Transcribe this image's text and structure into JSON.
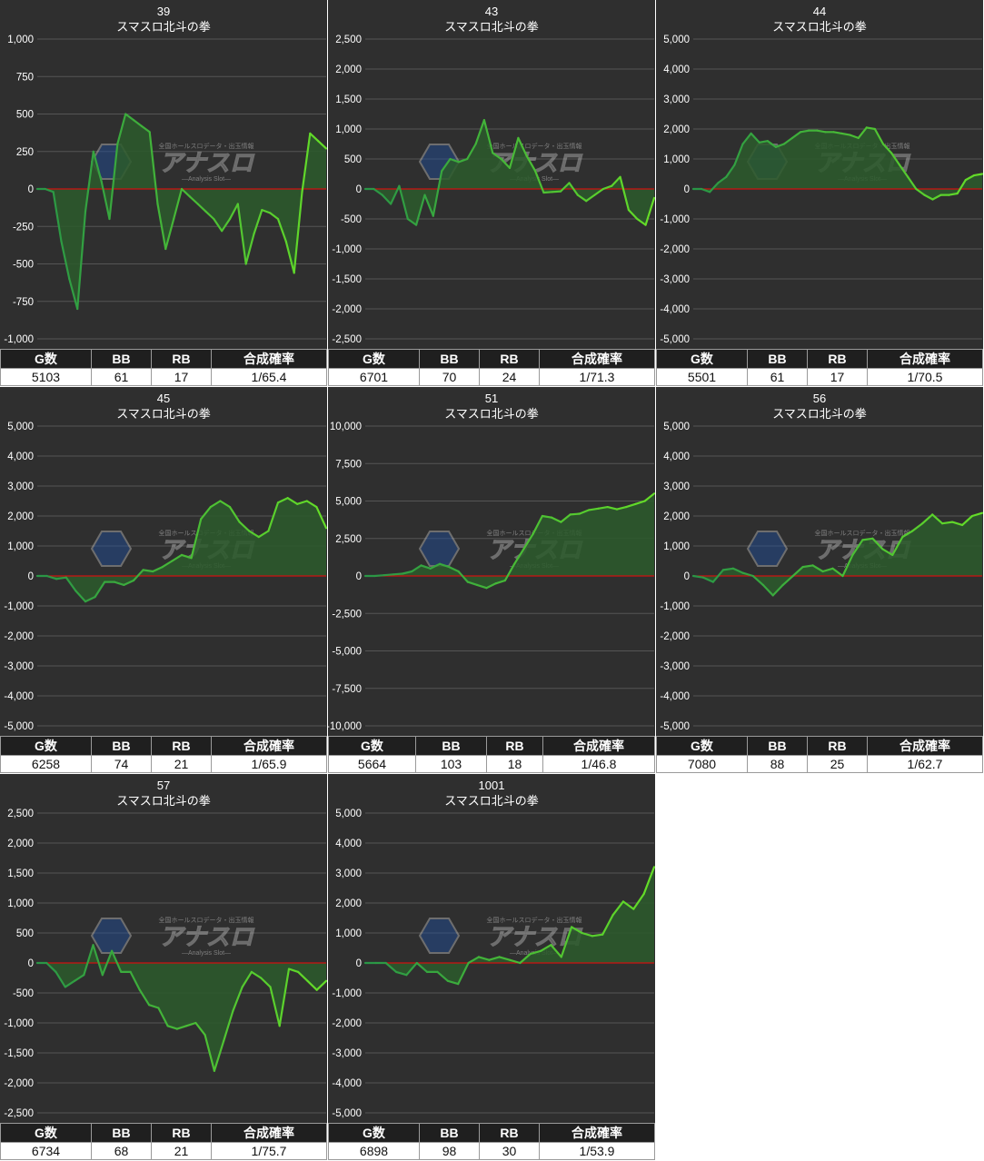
{
  "colors": {
    "background": "#2f2f2f",
    "grid": "#555555",
    "line": "#55cc33",
    "fill": "#2c5a2c",
    "zero_line": "#d01010",
    "text": "#ffffff",
    "header_bg": "#1f1f1f"
  },
  "headers": {
    "games": "G数",
    "bb": "BB",
    "rb": "RB",
    "rate": "合成確率"
  },
  "watermark": {
    "top": "全国ホールスロデータ・出玉情報",
    "main": "アナスロ",
    "sub": "—Analysis Slot—"
  },
  "chart_data": [
    {
      "type": "area",
      "title": "39",
      "subtitle": "スマスロ北斗の拳",
      "ylim": [
        -1000,
        1000
      ],
      "yticks": [
        -1000,
        -750,
        -500,
        -250,
        0,
        250,
        500,
        750,
        1000
      ],
      "tick_labels": [
        "-1,000",
        "-750",
        "-500",
        "-250",
        "0",
        "250",
        "500",
        "750",
        "1,000"
      ],
      "values": [
        0,
        0,
        -20,
        -350,
        -600,
        -800,
        -150,
        250,
        50,
        -200,
        300,
        500,
        460,
        420,
        380,
        -100,
        -400,
        -200,
        0,
        -50,
        -100,
        -150,
        -200,
        -280,
        -200,
        -100,
        -500,
        -300,
        -140,
        -160,
        -200,
        -350,
        -560,
        -20,
        370,
        320,
        270
      ],
      "stats": {
        "games": "5103",
        "bb": "61",
        "rb": "17",
        "rate": "1/65.4"
      }
    },
    {
      "type": "area",
      "title": "43",
      "subtitle": "スマスロ北斗の拳",
      "ylim": [
        -2500,
        2500
      ],
      "yticks": [
        -2500,
        -2000,
        -1500,
        -1000,
        -500,
        0,
        500,
        1000,
        1500,
        2000,
        2500
      ],
      "tick_labels": [
        "-2,500",
        "-2,000",
        "-1,500",
        "-1,000",
        "-500",
        "0",
        "500",
        "1,000",
        "1,500",
        "2,000",
        "2,500"
      ],
      "values": [
        0,
        0,
        -100,
        -250,
        50,
        -500,
        -600,
        -100,
        -450,
        300,
        500,
        450,
        500,
        750,
        1150,
        600,
        500,
        350,
        850,
        550,
        300,
        -60,
        -50,
        -40,
        100,
        -100,
        -200,
        -100,
        0,
        50,
        200,
        -350,
        -500,
        -600,
        -150
      ],
      "stats": {
        "games": "6701",
        "bb": "70",
        "rb": "24",
        "rate": "1/71.3"
      }
    },
    {
      "type": "area",
      "title": "44",
      "subtitle": "スマスロ北斗の拳",
      "ylim": [
        -5000,
        5000
      ],
      "yticks": [
        -5000,
        -4000,
        -3000,
        -2000,
        -1000,
        0,
        1000,
        2000,
        3000,
        4000,
        5000
      ],
      "tick_labels": [
        "-5,000",
        "-4,000",
        "-3,000",
        "-2,000",
        "-1,000",
        "0",
        "1,000",
        "2,000",
        "3,000",
        "4,000",
        "5,000"
      ],
      "values": [
        0,
        0,
        -100,
        200,
        400,
        800,
        1500,
        1850,
        1550,
        1600,
        1400,
        1500,
        1700,
        1900,
        1950,
        1950,
        1900,
        1900,
        1850,
        1800,
        1700,
        2050,
        2000,
        1500,
        1200,
        800,
        400,
        0,
        -200,
        -350,
        -200,
        -200,
        -150,
        300,
        450,
        500
      ],
      "stats": {
        "games": "5501",
        "bb": "61",
        "rb": "17",
        "rate": "1/70.5"
      }
    },
    {
      "type": "area",
      "title": "45",
      "subtitle": "スマスロ北斗の拳",
      "ylim": [
        -5000,
        5000
      ],
      "yticks": [
        -5000,
        -4000,
        -3000,
        -2000,
        -1000,
        0,
        1000,
        2000,
        3000,
        4000,
        5000
      ],
      "tick_labels": [
        "-5,000",
        "-4,000",
        "-3,000",
        "-2,000",
        "-1,000",
        "0",
        "1,000",
        "2,000",
        "3,000",
        "4,000",
        "5,000"
      ],
      "values": [
        0,
        0,
        -100,
        -50,
        -500,
        -850,
        -700,
        -200,
        -200,
        -300,
        -150,
        200,
        150,
        300,
        500,
        700,
        600,
        1900,
        2300,
        2500,
        2300,
        1800,
        1500,
        1300,
        1500,
        2450,
        2600,
        2400,
        2500,
        2300,
        1600
      ],
      "stats": {
        "games": "6258",
        "bb": "74",
        "rb": "21",
        "rate": "1/65.9"
      }
    },
    {
      "type": "area",
      "title": "51",
      "subtitle": "スマスロ北斗の拳",
      "ylim": [
        -10000,
        10000
      ],
      "yticks": [
        -10000,
        -7500,
        -5000,
        -2500,
        0,
        2500,
        5000,
        7500,
        10000
      ],
      "tick_labels": [
        "-10,000",
        "-7,500",
        "-5,000",
        "-2,500",
        "0",
        "2,500",
        "5,000",
        "7,500",
        "10,000"
      ],
      "values": [
        0,
        0,
        50,
        100,
        150,
        300,
        700,
        500,
        800,
        600,
        300,
        -400,
        -600,
        -800,
        -500,
        -300,
        800,
        1800,
        2800,
        4000,
        3900,
        3600,
        4100,
        4150,
        4400,
        4500,
        4600,
        4450,
        4600,
        4800,
        5000,
        5500
      ],
      "stats": {
        "games": "5664",
        "bb": "103",
        "rb": "18",
        "rate": "1/46.8"
      }
    },
    {
      "type": "area",
      "title": "56",
      "subtitle": "スマスロ北斗の拳",
      "ylim": [
        -5000,
        5000
      ],
      "yticks": [
        -5000,
        -4000,
        -3000,
        -2000,
        -1000,
        0,
        1000,
        2000,
        3000,
        4000,
        5000
      ],
      "tick_labels": [
        "-5,000",
        "-4,000",
        "-3,000",
        "-2,000",
        "-1,000",
        "0",
        "1,000",
        "2,000",
        "3,000",
        "4,000",
        "5,000"
      ],
      "values": [
        0,
        -50,
        -200,
        200,
        250,
        100,
        0,
        -300,
        -650,
        -300,
        0,
        300,
        350,
        150,
        250,
        0,
        700,
        1200,
        1250,
        900,
        700,
        1300,
        1500,
        1750,
        2050,
        1750,
        1800,
        1700,
        2000,
        2100
      ],
      "stats": {
        "games": "7080",
        "bb": "88",
        "rb": "25",
        "rate": "1/62.7"
      }
    },
    {
      "type": "area",
      "title": "57",
      "subtitle": "スマスロ北斗の拳",
      "ylim": [
        -2500,
        2500
      ],
      "yticks": [
        -2500,
        -2000,
        -1500,
        -1000,
        -500,
        0,
        500,
        1000,
        1500,
        2000,
        2500
      ],
      "tick_labels": [
        "-2,500",
        "-2,000",
        "-1,500",
        "-1,000",
        "-500",
        "0",
        "500",
        "1,000",
        "1,500",
        "2,000",
        "2,500"
      ],
      "values": [
        0,
        0,
        -150,
        -400,
        -300,
        -200,
        300,
        -200,
        200,
        -150,
        -150,
        -450,
        -700,
        -750,
        -1050,
        -1100,
        -1050,
        -1000,
        -1200,
        -1800,
        -1300,
        -800,
        -400,
        -150,
        -250,
        -400,
        -1050,
        -100,
        -150,
        -300,
        -450,
        -300
      ],
      "stats": {
        "games": "6734",
        "bb": "68",
        "rb": "21",
        "rate": "1/75.7"
      }
    },
    {
      "type": "area",
      "title": "1001",
      "subtitle": "スマスロ北斗の拳",
      "ylim": [
        -5000,
        5000
      ],
      "yticks": [
        -5000,
        -4000,
        -3000,
        -2000,
        -1000,
        0,
        1000,
        2000,
        3000,
        4000,
        5000
      ],
      "tick_labels": [
        "-5,000",
        "-4,000",
        "-3,000",
        "-2,000",
        "-1,000",
        "0",
        "1,000",
        "2,000",
        "3,000",
        "4,000",
        "5,000"
      ],
      "values": [
        0,
        0,
        0,
        -300,
        -400,
        0,
        -300,
        -300,
        -600,
        -700,
        0,
        200,
        100,
        200,
        100,
        0,
        300,
        400,
        600,
        200,
        1200,
        1000,
        900,
        950,
        1600,
        2050,
        1800,
        2300,
        3200
      ],
      "stats": {
        "games": "6898",
        "bb": "98",
        "rb": "30",
        "rate": "1/53.9"
      }
    }
  ]
}
